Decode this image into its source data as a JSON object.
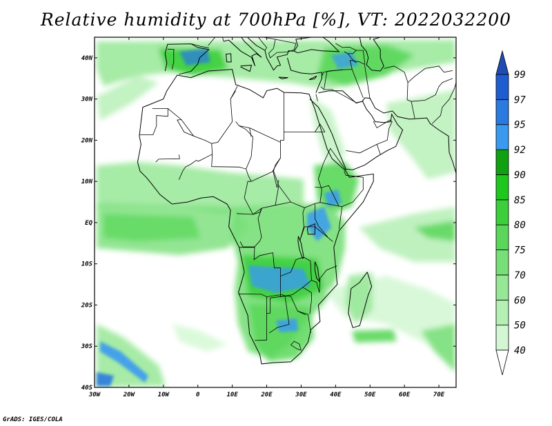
{
  "title": "Relative humidity at 700hPa [%], VT: 2022032200",
  "credit": "GrADS: IGES/COLA",
  "map": {
    "lon_range": [
      -30,
      75
    ],
    "lat_range": [
      -40,
      45
    ],
    "lon_ticks": [
      {
        "value": -30,
        "label": "30W"
      },
      {
        "value": -20,
        "label": "20W"
      },
      {
        "value": -10,
        "label": "10W"
      },
      {
        "value": 0,
        "label": "0"
      },
      {
        "value": 10,
        "label": "10E"
      },
      {
        "value": 20,
        "label": "20E"
      },
      {
        "value": 30,
        "label": "30E"
      },
      {
        "value": 40,
        "label": "40E"
      },
      {
        "value": 50,
        "label": "50E"
      },
      {
        "value": 60,
        "label": "60E"
      },
      {
        "value": 70,
        "label": "70E"
      }
    ],
    "lat_ticks": [
      {
        "value": 40,
        "label": "40N"
      },
      {
        "value": 30,
        "label": "30N"
      },
      {
        "value": 20,
        "label": "20N"
      },
      {
        "value": 10,
        "label": "10N"
      },
      {
        "value": 0,
        "label": "EQ"
      },
      {
        "value": -10,
        "label": "10S"
      },
      {
        "value": -20,
        "label": "20S"
      },
      {
        "value": -30,
        "label": "30S"
      },
      {
        "value": -40,
        "label": "40S"
      }
    ]
  },
  "colorbar": {
    "levels": [
      "40",
      "50",
      "60",
      "70",
      "75",
      "80",
      "85",
      "90",
      "92",
      "95",
      "97",
      "99"
    ],
    "colors": [
      "#f0fff0",
      "#d2f7d2",
      "#b4efb4",
      "#96e796",
      "#78df78",
      "#5ad75a",
      "#3ccf3c",
      "#1ec71e",
      "#10a010",
      "#3a9af0",
      "#2a7ae0",
      "#1e5cd0",
      "#1e4cb4"
    ],
    "arrow_top_color": "#1e4cb4",
    "arrow_bottom_color": "#ffffff"
  },
  "colors": {
    "coast": "#000000",
    "border": "#000000"
  }
}
